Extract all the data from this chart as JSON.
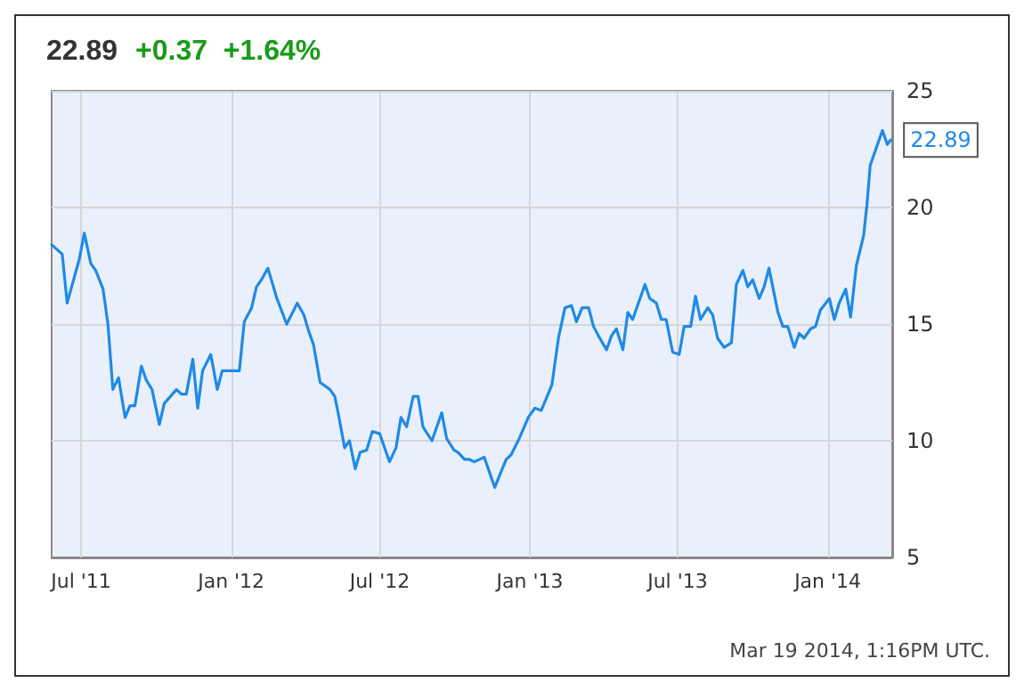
{
  "chart_data": {
    "type": "line",
    "title": "22.89",
    "subtitle": "+0.37  +1.64%",
    "x": [
      "2011-05-26",
      "2011-06-08",
      "2011-06-14",
      "2011-06-29",
      "2011-07-05",
      "2011-07-13",
      "2011-07-19",
      "2011-07-28",
      "2011-08-03",
      "2011-08-09",
      "2011-08-16",
      "2011-08-24",
      "2011-08-30",
      "2011-09-05",
      "2011-09-13",
      "2011-09-19",
      "2011-09-26",
      "2011-10-05",
      "2011-10-11",
      "2011-10-26",
      "2011-11-01",
      "2011-11-07",
      "2011-11-15",
      "2011-11-21",
      "2011-11-27",
      "2011-12-07",
      "2011-12-15",
      "2011-12-21",
      "2012-01-11",
      "2012-01-17",
      "2012-01-26",
      "2012-02-01",
      "2012-02-07",
      "2012-02-15",
      "2012-02-26",
      "2012-03-09",
      "2012-03-22",
      "2012-03-30",
      "2012-04-05",
      "2012-04-11",
      "2012-04-19",
      "2012-05-01",
      "2012-05-07",
      "2012-05-11",
      "2012-05-19",
      "2012-05-25",
      "2012-06-01",
      "2012-06-07",
      "2012-06-15",
      "2012-06-22",
      "2012-07-01",
      "2012-07-13",
      "2012-07-21",
      "2012-07-27",
      "2012-08-03",
      "2012-08-11",
      "2012-08-17",
      "2012-08-23",
      "2012-09-03",
      "2012-09-15",
      "2012-09-21",
      "2012-09-30",
      "2012-10-05",
      "2012-10-13",
      "2012-10-19",
      "2012-10-25",
      "2012-11-06",
      "2012-11-19",
      "2012-11-27",
      "2012-12-03",
      "2012-12-09",
      "2012-12-19",
      "2012-12-30",
      "2013-01-07",
      "2013-01-15",
      "2013-01-28",
      "2013-02-05",
      "2013-02-13",
      "2013-02-21",
      "2013-02-27",
      "2013-03-06",
      "2013-03-14",
      "2013-03-20",
      "2013-03-26",
      "2013-04-05",
      "2013-04-11",
      "2013-04-17",
      "2013-04-25",
      "2013-05-01",
      "2013-05-07",
      "2013-05-22",
      "2013-05-28",
      "2013-06-05",
      "2013-06-11",
      "2013-06-17",
      "2013-06-25",
      "2013-07-03",
      "2013-07-09",
      "2013-07-17",
      "2013-07-23",
      "2013-07-29",
      "2013-08-07",
      "2013-08-13",
      "2013-08-19",
      "2013-08-27",
      "2013-09-05",
      "2013-09-11",
      "2013-09-19",
      "2013-09-25",
      "2013-10-01",
      "2013-10-09",
      "2013-10-15",
      "2013-10-21",
      "2013-11-01",
      "2013-11-07",
      "2013-11-13",
      "2013-11-21",
      "2013-11-27",
      "2013-12-03",
      "2013-12-11",
      "2013-12-17",
      "2013-12-23",
      "2014-01-03",
      "2014-01-09",
      "2014-01-15",
      "2014-01-23",
      "2014-01-29",
      "2014-02-05",
      "2014-02-14",
      "2014-02-18",
      "2014-02-22",
      "2014-03-09",
      "2014-03-15",
      "2014-03-19"
    ],
    "series": [
      {
        "color": "#1f8ae6",
        "values": [
          18.4,
          18.0,
          15.9,
          17.8,
          18.9,
          17.6,
          17.3,
          16.5,
          15.0,
          12.2,
          12.7,
          11.0,
          11.5,
          11.5,
          13.2,
          12.6,
          12.2,
          10.7,
          11.6,
          12.2,
          12.0,
          12.0,
          13.5,
          11.4,
          13.0,
          13.7,
          12.2,
          13.0,
          13.0,
          15.1,
          15.7,
          16.6,
          16.9,
          17.4,
          16.1,
          15.0,
          15.9,
          15.4,
          14.7,
          14.1,
          12.5,
          12.2,
          11.9,
          11.2,
          9.7,
          10.0,
          8.8,
          9.5,
          9.6,
          10.4,
          10.3,
          9.1,
          9.7,
          11.0,
          10.6,
          11.9,
          11.9,
          10.6,
          10.0,
          11.2,
          10.1,
          9.6,
          9.5,
          9.2,
          9.2,
          9.1,
          9.3,
          8.0,
          8.7,
          9.2,
          9.4,
          10.1,
          11.0,
          11.4,
          11.3,
          12.4,
          14.4,
          15.7,
          15.8,
          15.1,
          15.7,
          15.7,
          14.9,
          14.5,
          13.9,
          14.5,
          14.8,
          13.9,
          15.5,
          15.2,
          16.7,
          16.1,
          15.9,
          15.2,
          15.2,
          13.8,
          13.7,
          14.9,
          14.9,
          16.2,
          15.2,
          15.7,
          15.4,
          14.4,
          14.0,
          14.2,
          16.7,
          17.3,
          16.6,
          16.9,
          16.1,
          16.6,
          17.4,
          15.5,
          14.9,
          14.9,
          14.0,
          14.6,
          14.4,
          14.8,
          14.9,
          15.6,
          16.1,
          15.2,
          15.9,
          16.5,
          15.3,
          17.5,
          18.8,
          20.1,
          21.8,
          23.3,
          22.7,
          22.89
        ]
      }
    ],
    "xlim": [
      "2011-05-26",
      "2014-03-21"
    ],
    "xticks": [
      {
        "value": "2011-07-01",
        "label": "Jul '11"
      },
      {
        "value": "2012-01-01",
        "label": "Jan '12"
      },
      {
        "value": "2012-07-01",
        "label": "Jul '12"
      },
      {
        "value": "2013-01-01",
        "label": "Jan '13"
      },
      {
        "value": "2013-07-01",
        "label": "Jul '13"
      },
      {
        "value": "2014-01-01",
        "label": "Jan '14"
      }
    ],
    "ylim": [
      5,
      25
    ],
    "yticks": [
      5,
      10,
      15,
      20,
      25
    ],
    "grid": true,
    "marker": "none",
    "line_style": "solid",
    "annotations": [
      {
        "text": "22.89",
        "x": "2014-03-19",
        "y": 22.89
      },
      "Mar 19 2014, 1:16PM UTC."
    ]
  }
}
